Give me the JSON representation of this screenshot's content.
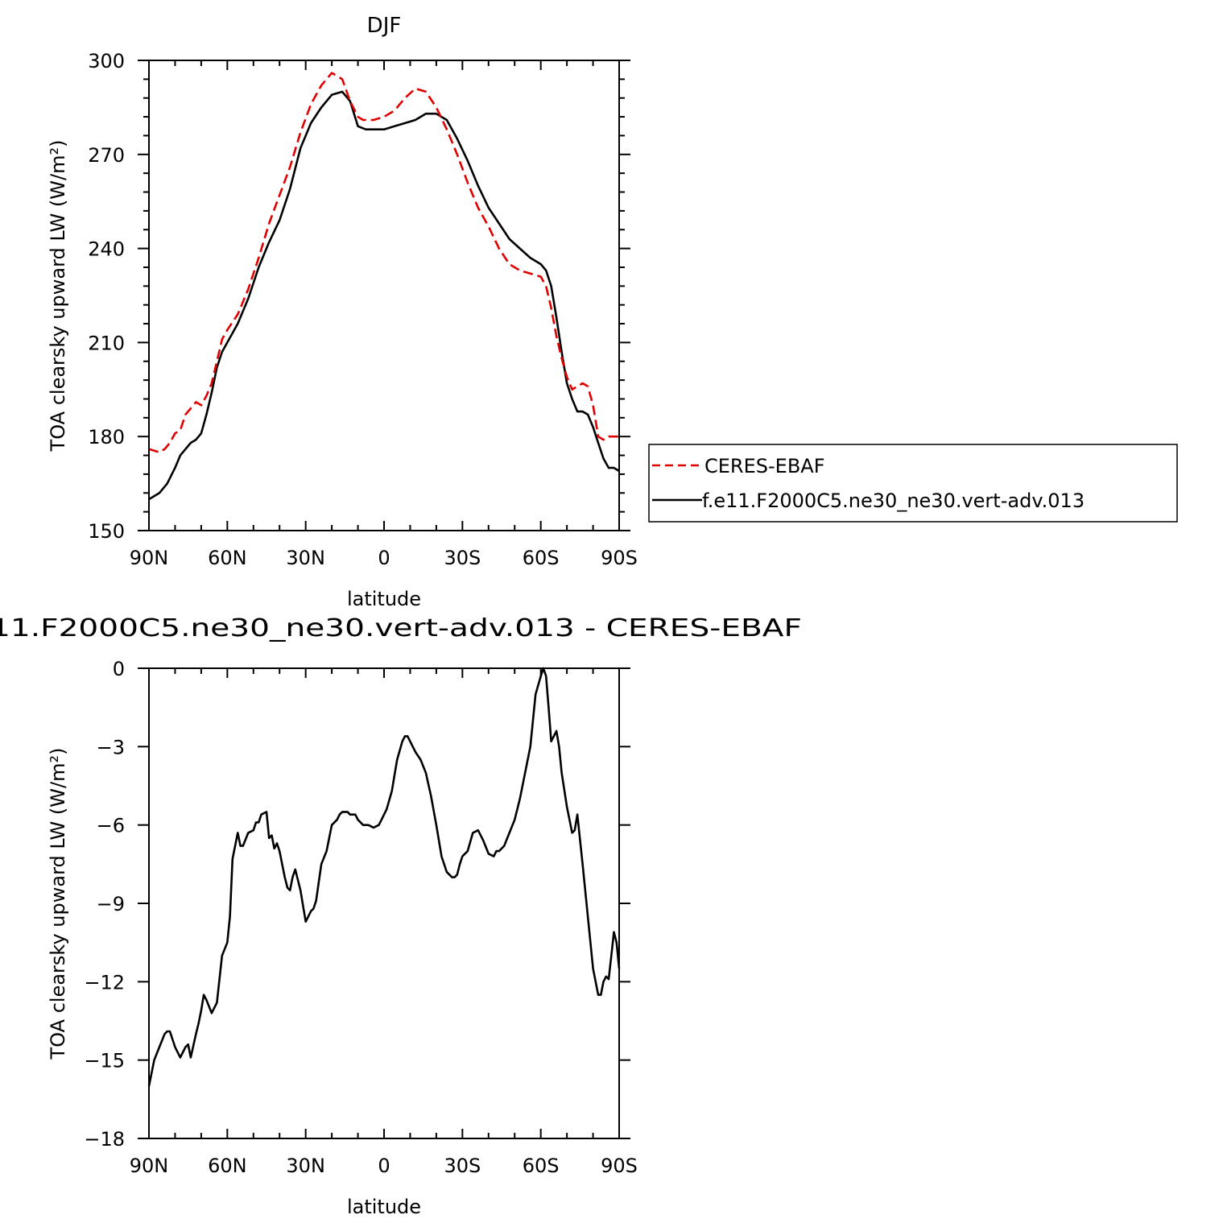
{
  "colors": {
    "ceres": "#e00000",
    "model": "#000000",
    "axis": "#000000"
  },
  "chart_data": [
    {
      "type": "line",
      "title": "DJF",
      "xlabel": "latitude",
      "ylabel": "TOA clearsky upward LW (W/m²)",
      "xlim": [
        90,
        -90
      ],
      "ylim": [
        150,
        300
      ],
      "xticks": [
        90,
        60,
        30,
        0,
        -30,
        -60,
        -90
      ],
      "xtick_labels": [
        "90N",
        "60N",
        "30N",
        "0",
        "30S",
        "60S",
        "90S"
      ],
      "yticks": [
        150,
        180,
        210,
        240,
        270,
        300
      ],
      "ytick_labels": [
        "150",
        "180",
        "210",
        "240",
        "270",
        "300"
      ],
      "legend": {
        "placement": "right-outside"
      },
      "series": [
        {
          "name": "CERES-EBAF",
          "style": "dashed",
          "color": "#e00000",
          "x": [
            90,
            86,
            84,
            82,
            80,
            78,
            76,
            74,
            72,
            70,
            68,
            66,
            64,
            62,
            60,
            56,
            52,
            48,
            44,
            40,
            36,
            32,
            28,
            24,
            20,
            16,
            13,
            10,
            8,
            4,
            0,
            -4,
            -8,
            -12,
            -16,
            -20,
            -24,
            -28,
            -32,
            -36,
            -40,
            -44,
            -48,
            -52,
            -56,
            -60,
            -62,
            -64,
            -66,
            -68,
            -70,
            -72,
            -74,
            -76,
            -78,
            -80,
            -82,
            -84,
            -86,
            -88,
            -90
          ],
          "y": [
            176,
            175,
            176,
            178,
            181,
            182,
            187,
            189,
            191,
            190,
            193,
            197,
            204,
            211,
            214,
            219,
            227,
            237,
            248,
            257,
            266,
            277,
            286,
            292,
            296,
            294,
            287,
            282,
            281,
            281,
            282,
            284,
            288,
            291,
            290,
            285,
            278,
            270,
            261,
            253,
            247,
            240,
            235,
            233,
            232,
            231,
            228,
            221,
            212,
            205,
            199,
            195,
            196,
            197,
            196,
            190,
            180,
            179,
            180,
            180,
            180
          ]
        },
        {
          "name": "f.e11.F2000C5.ne30_ne30.vert-adv.013",
          "style": "solid",
          "color": "#000000",
          "x": [
            90,
            86,
            83,
            80,
            78,
            76,
            74,
            72,
            70,
            68,
            66,
            64,
            62,
            60,
            56,
            52,
            48,
            44,
            40,
            36,
            32,
            28,
            24,
            20,
            16,
            13,
            10,
            7,
            4,
            0,
            -4,
            -8,
            -12,
            -16,
            -20,
            -24,
            -28,
            -32,
            -36,
            -40,
            -44,
            -48,
            -52,
            -56,
            -60,
            -62,
            -64,
            -66,
            -68,
            -70,
            -72,
            -74,
            -76,
            -78,
            -80,
            -82,
            -84,
            -86,
            -88,
            -90
          ],
          "y": [
            160,
            162,
            165,
            170,
            174,
            176,
            178,
            179,
            181,
            187,
            194,
            202,
            207,
            210,
            216,
            224,
            234,
            242,
            249,
            259,
            272,
            280,
            285,
            289,
            290,
            287,
            279,
            278,
            278,
            278,
            279,
            280,
            281,
            283,
            283,
            281,
            275,
            268,
            260,
            253,
            248,
            243,
            240,
            237,
            235,
            233,
            228,
            218,
            207,
            197,
            192,
            188,
            188,
            187,
            183,
            178,
            173,
            170,
            170,
            169
          ]
        }
      ]
    },
    {
      "type": "line",
      "title": "11.F2000C5.ne30_ne30.vert-adv.013 - CERES-EBAF",
      "xlabel": "latitude",
      "ylabel": "TOA clearsky upward LW (W/m²)",
      "xlim": [
        90,
        -90
      ],
      "ylim": [
        -18,
        0
      ],
      "xticks": [
        90,
        60,
        30,
        0,
        -30,
        -60,
        -90
      ],
      "xtick_labels": [
        "90N",
        "60N",
        "30N",
        "0",
        "30S",
        "60S",
        "90S"
      ],
      "yticks": [
        -18,
        -15,
        -12,
        -9,
        -6,
        -3,
        0
      ],
      "ytick_labels": [
        "−18",
        "−15",
        "−12",
        "−9",
        "−6",
        "−3",
        "0"
      ],
      "series": [
        {
          "style": "solid",
          "color": "#000000",
          "x": [
            90,
            88,
            86,
            84,
            83,
            82,
            80,
            78,
            77,
            76,
            75,
            74,
            72,
            71,
            70,
            69,
            68,
            66,
            64,
            62,
            60,
            59,
            58,
            56,
            55,
            54,
            52,
            50,
            49,
            48,
            47,
            45,
            44,
            43,
            42,
            41,
            40,
            38,
            37,
            36,
            35,
            34,
            32,
            30,
            28,
            27,
            26,
            24,
            22,
            20,
            18,
            17,
            16,
            15,
            14,
            13,
            11,
            10,
            8,
            6,
            4,
            2,
            1,
            0,
            -1,
            -3,
            -5,
            -7,
            -8,
            -9,
            -10,
            -12,
            -14,
            -16,
            -18,
            -20,
            -22,
            -24,
            -26,
            -27,
            -28,
            -29,
            -30,
            -32,
            -34,
            -36,
            -38,
            -40,
            -42,
            -43,
            -44,
            -46,
            -48,
            -50,
            -52,
            -54,
            -56,
            -58,
            -60,
            -61,
            -62,
            -63,
            -64,
            -65,
            -66,
            -67,
            -68,
            -70,
            -72,
            -73,
            -74,
            -76,
            -78,
            -80,
            -82,
            -83,
            -84,
            -85,
            -86,
            -87,
            -88,
            -89,
            -90
          ],
          "y": [
            -16,
            -15,
            -14.5,
            -14,
            -13.9,
            -13.9,
            -14.5,
            -14.9,
            -14.7,
            -14.5,
            -14.4,
            -14.9,
            -14,
            -13.6,
            -13.1,
            -12.5,
            -12.7,
            -13.2,
            -12.8,
            -11,
            -10.5,
            -9.5,
            -7.3,
            -6.3,
            -6.8,
            -6.8,
            -6.3,
            -6.2,
            -5.9,
            -5.9,
            -5.6,
            -5.5,
            -6.5,
            -6.4,
            -6.9,
            -6.7,
            -7.0,
            -8.0,
            -8.4,
            -8.5,
            -8.0,
            -7.7,
            -8.5,
            -9.7,
            -9.3,
            -9.2,
            -8.9,
            -7.5,
            -7.0,
            -6.0,
            -5.8,
            -5.6,
            -5.5,
            -5.5,
            -5.5,
            -5.6,
            -5.6,
            -5.8,
            -6.0,
            -6.0,
            -6.1,
            -6.0,
            -5.8,
            -5.6,
            -5.4,
            -4.7,
            -3.5,
            -2.8,
            -2.6,
            -2.6,
            -2.8,
            -3.2,
            -3.5,
            -4.0,
            -4.9,
            -6.0,
            -7.2,
            -7.8,
            -8.0,
            -8.0,
            -7.9,
            -7.5,
            -7.2,
            -7.0,
            -6.3,
            -6.2,
            -6.6,
            -7.1,
            -7.2,
            -7.0,
            -7.0,
            -6.8,
            -6.3,
            -5.8,
            -5.0,
            -4.0,
            -3.0,
            -1.0,
            -0.3,
            0,
            -0.3,
            -1.5,
            -2.8,
            -2.6,
            -2.4,
            -3.0,
            -4.0,
            -5.3,
            -6.3,
            -6.2,
            -5.6,
            -7.5,
            -9.5,
            -11.5,
            -12.5,
            -12.5,
            -12.0,
            -11.8,
            -11.9,
            -11.0,
            -10.1,
            -10.5,
            -11.5
          ]
        }
      ]
    }
  ]
}
